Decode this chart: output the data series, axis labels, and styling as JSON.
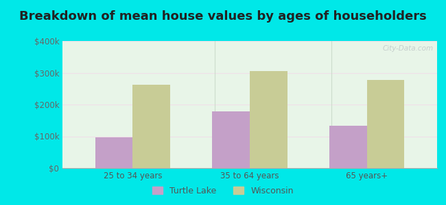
{
  "title": "Breakdown of mean house values by ages of householders",
  "categories": [
    "25 to 34 years",
    "35 to 64 years",
    "65 years+"
  ],
  "turtle_lake_values": [
    97000,
    178000,
    133000
  ],
  "wisconsin_values": [
    263000,
    305000,
    278000
  ],
  "turtle_lake_color": "#c4a0c8",
  "wisconsin_color": "#c8cc96",
  "ylim": [
    0,
    400000
  ],
  "yticks": [
    0,
    100000,
    200000,
    300000,
    400000
  ],
  "ytick_labels": [
    "$0",
    "$100k",
    "$200k",
    "$300k",
    "$400k"
  ],
  "background_color": "#00e8e8",
  "bar_width": 0.32,
  "legend_labels": [
    "Turtle Lake",
    "Wisconsin"
  ],
  "title_fontsize": 13,
  "tick_fontsize": 8.5,
  "legend_fontsize": 9,
  "grid_color": "#e0eee0",
  "watermark": "City-Data.com"
}
